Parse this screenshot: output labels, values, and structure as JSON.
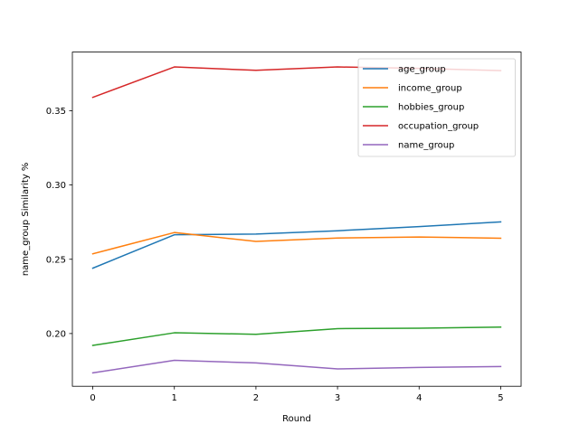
{
  "chart_data": {
    "type": "line",
    "title": "",
    "xlabel": "Round",
    "ylabel": "name_group Similarity %",
    "x": [
      0,
      1,
      2,
      3,
      4,
      5
    ],
    "xlim": [
      -0.25,
      5.25
    ],
    "ylim": [
      0.1645,
      0.3895
    ],
    "xticks": [
      0,
      1,
      2,
      3,
      4,
      5
    ],
    "yticks": [
      0.2,
      0.25,
      0.3,
      0.35
    ],
    "ytick_labels": [
      "0.20",
      "0.25",
      "0.30",
      "0.35"
    ],
    "grid": false,
    "legend_position": "top-right",
    "series": [
      {
        "name": "age_group",
        "color": "#1f77b4",
        "values": [
          0.244,
          0.2665,
          0.267,
          0.2692,
          0.272,
          0.2752
        ]
      },
      {
        "name": "income_group",
        "color": "#ff7f0e",
        "values": [
          0.2537,
          0.268,
          0.262,
          0.2643,
          0.265,
          0.2642
        ]
      },
      {
        "name": "hobbies_group",
        "color": "#2ca02c",
        "values": [
          0.192,
          0.2005,
          0.1995,
          0.2033,
          0.2036,
          0.2043
        ]
      },
      {
        "name": "occupation_group",
        "color": "#d62728",
        "values": [
          0.359,
          0.3795,
          0.3772,
          0.3795,
          0.3785,
          0.377
        ]
      },
      {
        "name": "name_group",
        "color": "#9467bd",
        "values": [
          0.1735,
          0.182,
          0.1802,
          0.1762,
          0.1772,
          0.1778
        ]
      }
    ]
  }
}
